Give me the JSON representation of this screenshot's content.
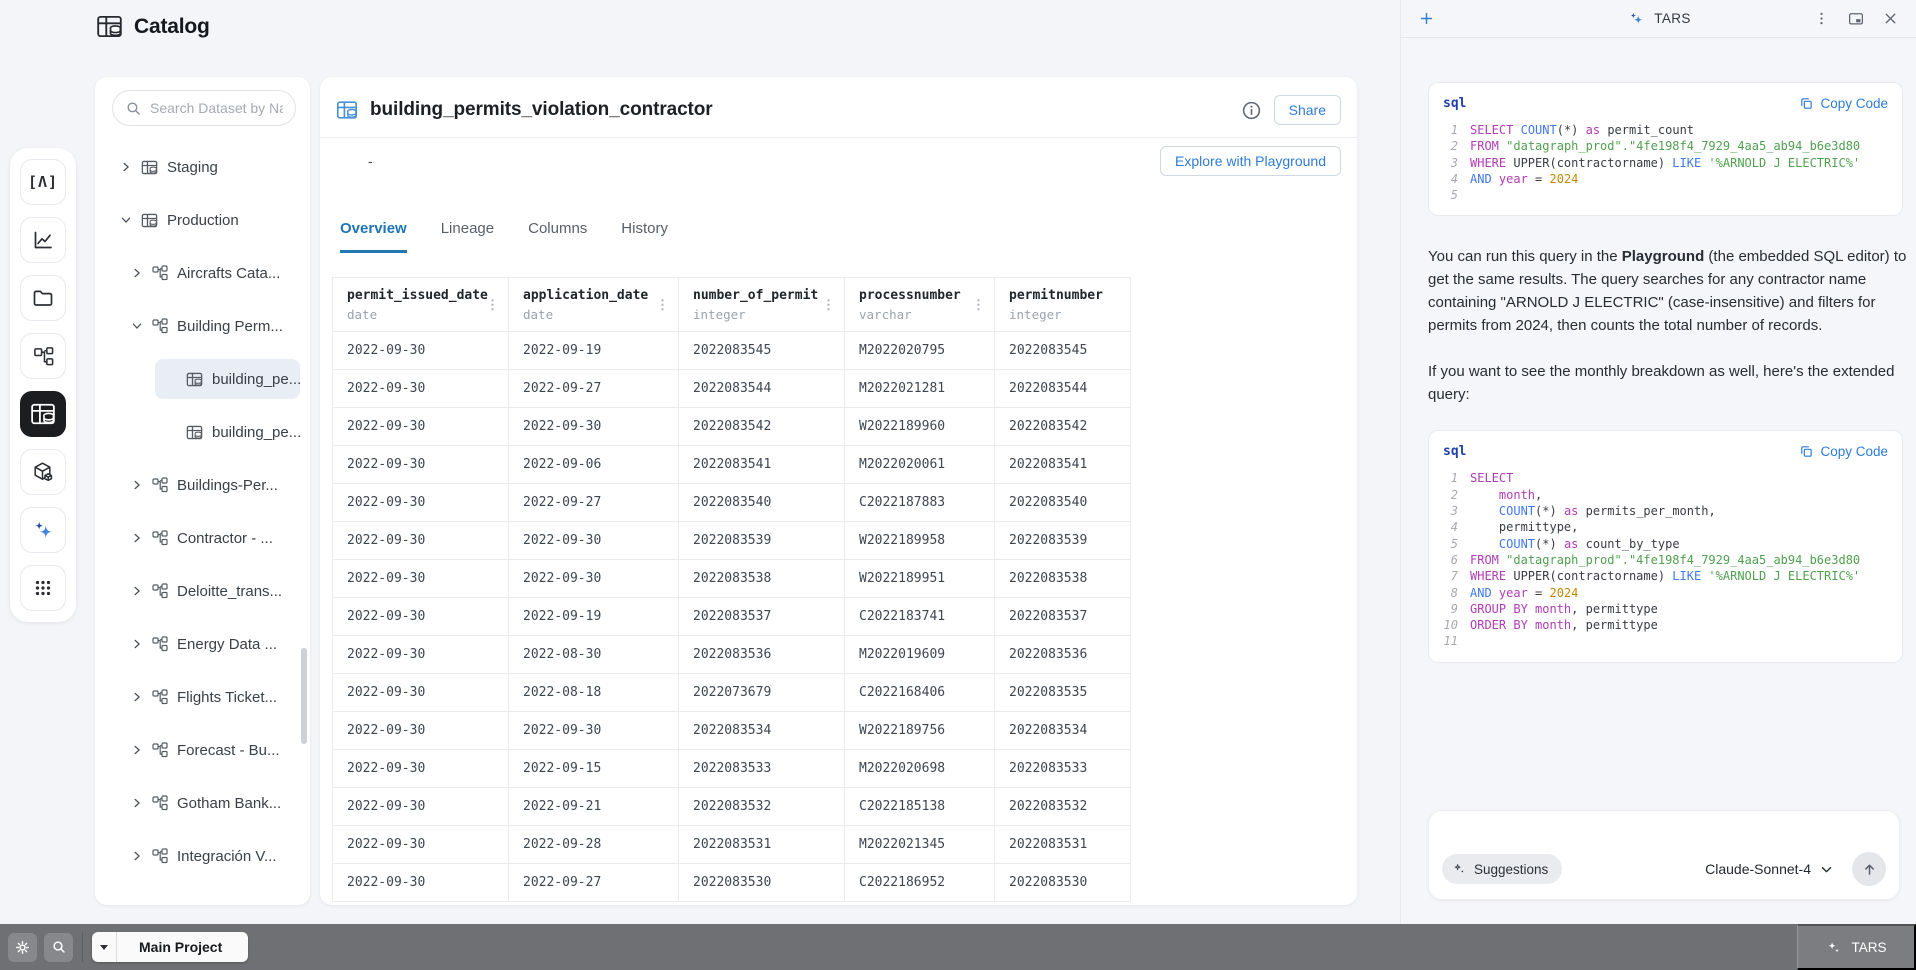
{
  "app": {
    "title": "Catalog"
  },
  "rail": {
    "icons": [
      "code-brackets-icon",
      "line-chart-icon",
      "folder-icon",
      "schema-icon",
      "catalog-table-icon",
      "cube-icon",
      "sparkles-icon",
      "apps-grid-icon"
    ],
    "active_icon": "catalog-table-icon"
  },
  "catalog_panel": {
    "search_placeholder": "Search Dataset by Name",
    "tree": [
      {
        "label": "Staging",
        "type": "db",
        "level": 0,
        "expanded": false
      },
      {
        "label": "Production",
        "type": "db",
        "level": 0,
        "expanded": true
      },
      {
        "label": "Aircrafts Cata...",
        "type": "schema",
        "level": 1,
        "expanded": false
      },
      {
        "label": "Building Perm...",
        "type": "schema",
        "level": 1,
        "expanded": true
      },
      {
        "label": "building_pe...",
        "type": "table",
        "level": 2,
        "selected": true
      },
      {
        "label": "building_pe...",
        "type": "table",
        "level": 2
      },
      {
        "label": "Buildings-Per...",
        "type": "schema",
        "level": 1,
        "expanded": false
      },
      {
        "label": "Contractor - ...",
        "type": "schema",
        "level": 1,
        "expanded": false
      },
      {
        "label": "Deloitte_trans...",
        "type": "schema",
        "level": 1,
        "expanded": false
      },
      {
        "label": "Energy Data ...",
        "type": "schema",
        "level": 1,
        "expanded": false
      },
      {
        "label": "Flights Ticket...",
        "type": "schema",
        "level": 1,
        "expanded": false
      },
      {
        "label": "Forecast - Bu...",
        "type": "schema",
        "level": 1,
        "expanded": false
      },
      {
        "label": "Gotham Bank...",
        "type": "schema",
        "level": 1,
        "expanded": false
      },
      {
        "label": "Integración V...",
        "type": "schema",
        "level": 1,
        "expanded": false
      }
    ]
  },
  "main": {
    "dataset_title": "building_permits_violation_contractor",
    "description_dash": "-",
    "buttons": {
      "share": "Share",
      "explore": "Explore with Playground"
    },
    "tabs": [
      "Overview",
      "Lineage",
      "Columns",
      "History"
    ],
    "active_tab": "Overview",
    "table": {
      "columns": [
        {
          "name": "permit_issued_date",
          "type": "date",
          "menu": true
        },
        {
          "name": "application_date",
          "type": "date",
          "menu": true
        },
        {
          "name": "number_of_permit",
          "type": "integer",
          "menu": true
        },
        {
          "name": "processnumber",
          "type": "varchar",
          "menu": true
        },
        {
          "name": "permitnumber",
          "type": "integer",
          "menu": false
        }
      ],
      "rows": [
        [
          "2022-09-30",
          "2022-09-19",
          "2022083545",
          "M2022020795",
          "2022083545"
        ],
        [
          "2022-09-30",
          "2022-09-27",
          "2022083544",
          "M2022021281",
          "2022083544"
        ],
        [
          "2022-09-30",
          "2022-09-30",
          "2022083542",
          "W2022189960",
          "2022083542"
        ],
        [
          "2022-09-30",
          "2022-09-06",
          "2022083541",
          "M2022020061",
          "2022083541"
        ],
        [
          "2022-09-30",
          "2022-09-27",
          "2022083540",
          "C2022187883",
          "2022083540"
        ],
        [
          "2022-09-30",
          "2022-09-30",
          "2022083539",
          "W2022189958",
          "2022083539"
        ],
        [
          "2022-09-30",
          "2022-09-30",
          "2022083538",
          "W2022189951",
          "2022083538"
        ],
        [
          "2022-09-30",
          "2022-09-19",
          "2022083537",
          "C2022183741",
          "2022083537"
        ],
        [
          "2022-09-30",
          "2022-08-30",
          "2022083536",
          "M2022019609",
          "2022083536"
        ],
        [
          "2022-09-30",
          "2022-08-18",
          "2022073679",
          "C2022168406",
          "2022083535"
        ],
        [
          "2022-09-30",
          "2022-09-30",
          "2022083534",
          "W2022189756",
          "2022083534"
        ],
        [
          "2022-09-30",
          "2022-09-15",
          "2022083533",
          "M2022020698",
          "2022083533"
        ],
        [
          "2022-09-30",
          "2022-09-21",
          "2022083532",
          "C2022185138",
          "2022083532"
        ],
        [
          "2022-09-30",
          "2022-09-28",
          "2022083531",
          "M2022021345",
          "2022083531"
        ],
        [
          "2022-09-30",
          "2022-09-27",
          "2022083530",
          "C2022186952",
          "2022083530"
        ]
      ]
    }
  },
  "tars_panel": {
    "header": {
      "title": "TARS",
      "icons": [
        "plus-icon",
        "sparkle-icon",
        "more-menu-icon",
        "pip-window-icon",
        "close-icon"
      ]
    },
    "code_blocks": [
      {
        "lang": "sql",
        "copy_label": "Copy Code",
        "lines": [
          {
            "n": "1",
            "t": [
              [
                "kw",
                "SELECT"
              ],
              [
                "pl",
                " "
              ],
              [
                "fn",
                "COUNT"
              ],
              [
                "pl",
                "(*)"
              ],
              [
                "kw",
                " as"
              ],
              [
                "pl",
                " permit_count"
              ]
            ]
          },
          {
            "n": "2",
            "t": [
              [
                "kw",
                "FROM"
              ],
              [
                "pl",
                " "
              ],
              [
                "str",
                "\"datagraph_prod\".\"4fe198f4_7929_4aa5_ab94_b6e3d80"
              ]
            ]
          },
          {
            "n": "3",
            "t": [
              [
                "kw",
                "WHERE"
              ],
              [
                "pl",
                " UPPER(contractorname) "
              ],
              [
                "fn",
                "LIKE"
              ],
              [
                "str",
                " '%ARNOLD J ELECTRIC%'"
              ]
            ]
          },
          {
            "n": "4",
            "t": [
              [
                "fn",
                "AND"
              ],
              [
                "kw",
                " year"
              ],
              [
                "pl",
                " = "
              ],
              [
                "num",
                "2024"
              ]
            ]
          },
          {
            "n": "5",
            "t": []
          }
        ]
      },
      {
        "lang": "sql",
        "copy_label": "Copy Code",
        "lines": [
          {
            "n": "1",
            "t": [
              [
                "kw",
                "SELECT"
              ]
            ]
          },
          {
            "n": "2",
            "t": [
              [
                "pl",
                "    "
              ],
              [
                "kw",
                "month"
              ],
              [
                "pl",
                ","
              ]
            ]
          },
          {
            "n": "3",
            "t": [
              [
                "pl",
                "    "
              ],
              [
                "fn",
                "COUNT"
              ],
              [
                "pl",
                "(*)"
              ],
              [
                "kw",
                " as"
              ],
              [
                "pl",
                " permits_per_month,"
              ]
            ]
          },
          {
            "n": "4",
            "t": [
              [
                "pl",
                "    permittype,"
              ]
            ]
          },
          {
            "n": "5",
            "t": [
              [
                "pl",
                "    "
              ],
              [
                "fn",
                "COUNT"
              ],
              [
                "pl",
                "(*)"
              ],
              [
                "kw",
                " as"
              ],
              [
                "pl",
                " count_by_type"
              ]
            ]
          },
          {
            "n": "6",
            "t": [
              [
                "kw",
                "FROM"
              ],
              [
                "pl",
                " "
              ],
              [
                "str",
                "\"datagraph_prod\".\"4fe198f4_7929_4aa5_ab94_b6e3d80"
              ]
            ]
          },
          {
            "n": "7",
            "t": [
              [
                "kw",
                "WHERE"
              ],
              [
                "pl",
                " UPPER(contractorname) "
              ],
              [
                "fn",
                "LIKE"
              ],
              [
                "str",
                " '%ARNOLD J ELECTRIC%'"
              ]
            ]
          },
          {
            "n": "8",
            "t": [
              [
                "fn",
                "AND"
              ],
              [
                "kw",
                " year"
              ],
              [
                "pl",
                " = "
              ],
              [
                "num",
                "2024"
              ]
            ]
          },
          {
            "n": "9",
            "t": [
              [
                "kw",
                "GROUP BY"
              ],
              [
                "kw",
                " month"
              ],
              [
                "pl",
                ", permittype"
              ]
            ]
          },
          {
            "n": "10",
            "t": [
              [
                "kw",
                "ORDER BY"
              ],
              [
                "kw",
                " month"
              ],
              [
                "pl",
                ", permittype"
              ]
            ]
          },
          {
            "n": "11",
            "t": []
          }
        ]
      }
    ],
    "paragraph_1": [
      {
        "t": "You can run this query in the "
      },
      {
        "t": "Playground",
        "b": true
      },
      {
        "t": " (the embedded SQL editor) to get the same results. The query searches for any contractor name containing \"ARNOLD J ELECTRIC\" (case-insensitive) and filters for permits from 2024, then counts the total number of records."
      }
    ],
    "paragraph_2": "If you want to see the monthly breakdown as well, here's the extended query:",
    "composer": {
      "suggestions_label": "Suggestions",
      "model_label": "Claude-Sonnet-4"
    }
  },
  "status_bar": {
    "project_label": "Main Project",
    "tars_label": "TARS"
  },
  "colors": {
    "accent_blue": "#2e7cd6",
    "active_tab": "#2178b5",
    "code_keyword": "#b03cb5",
    "code_function": "#4078f2",
    "code_string": "#50a14f",
    "code_number": "#c08a00",
    "selected_row_bg": "#e9edf4",
    "status_bar_bg": "#6f7073"
  }
}
